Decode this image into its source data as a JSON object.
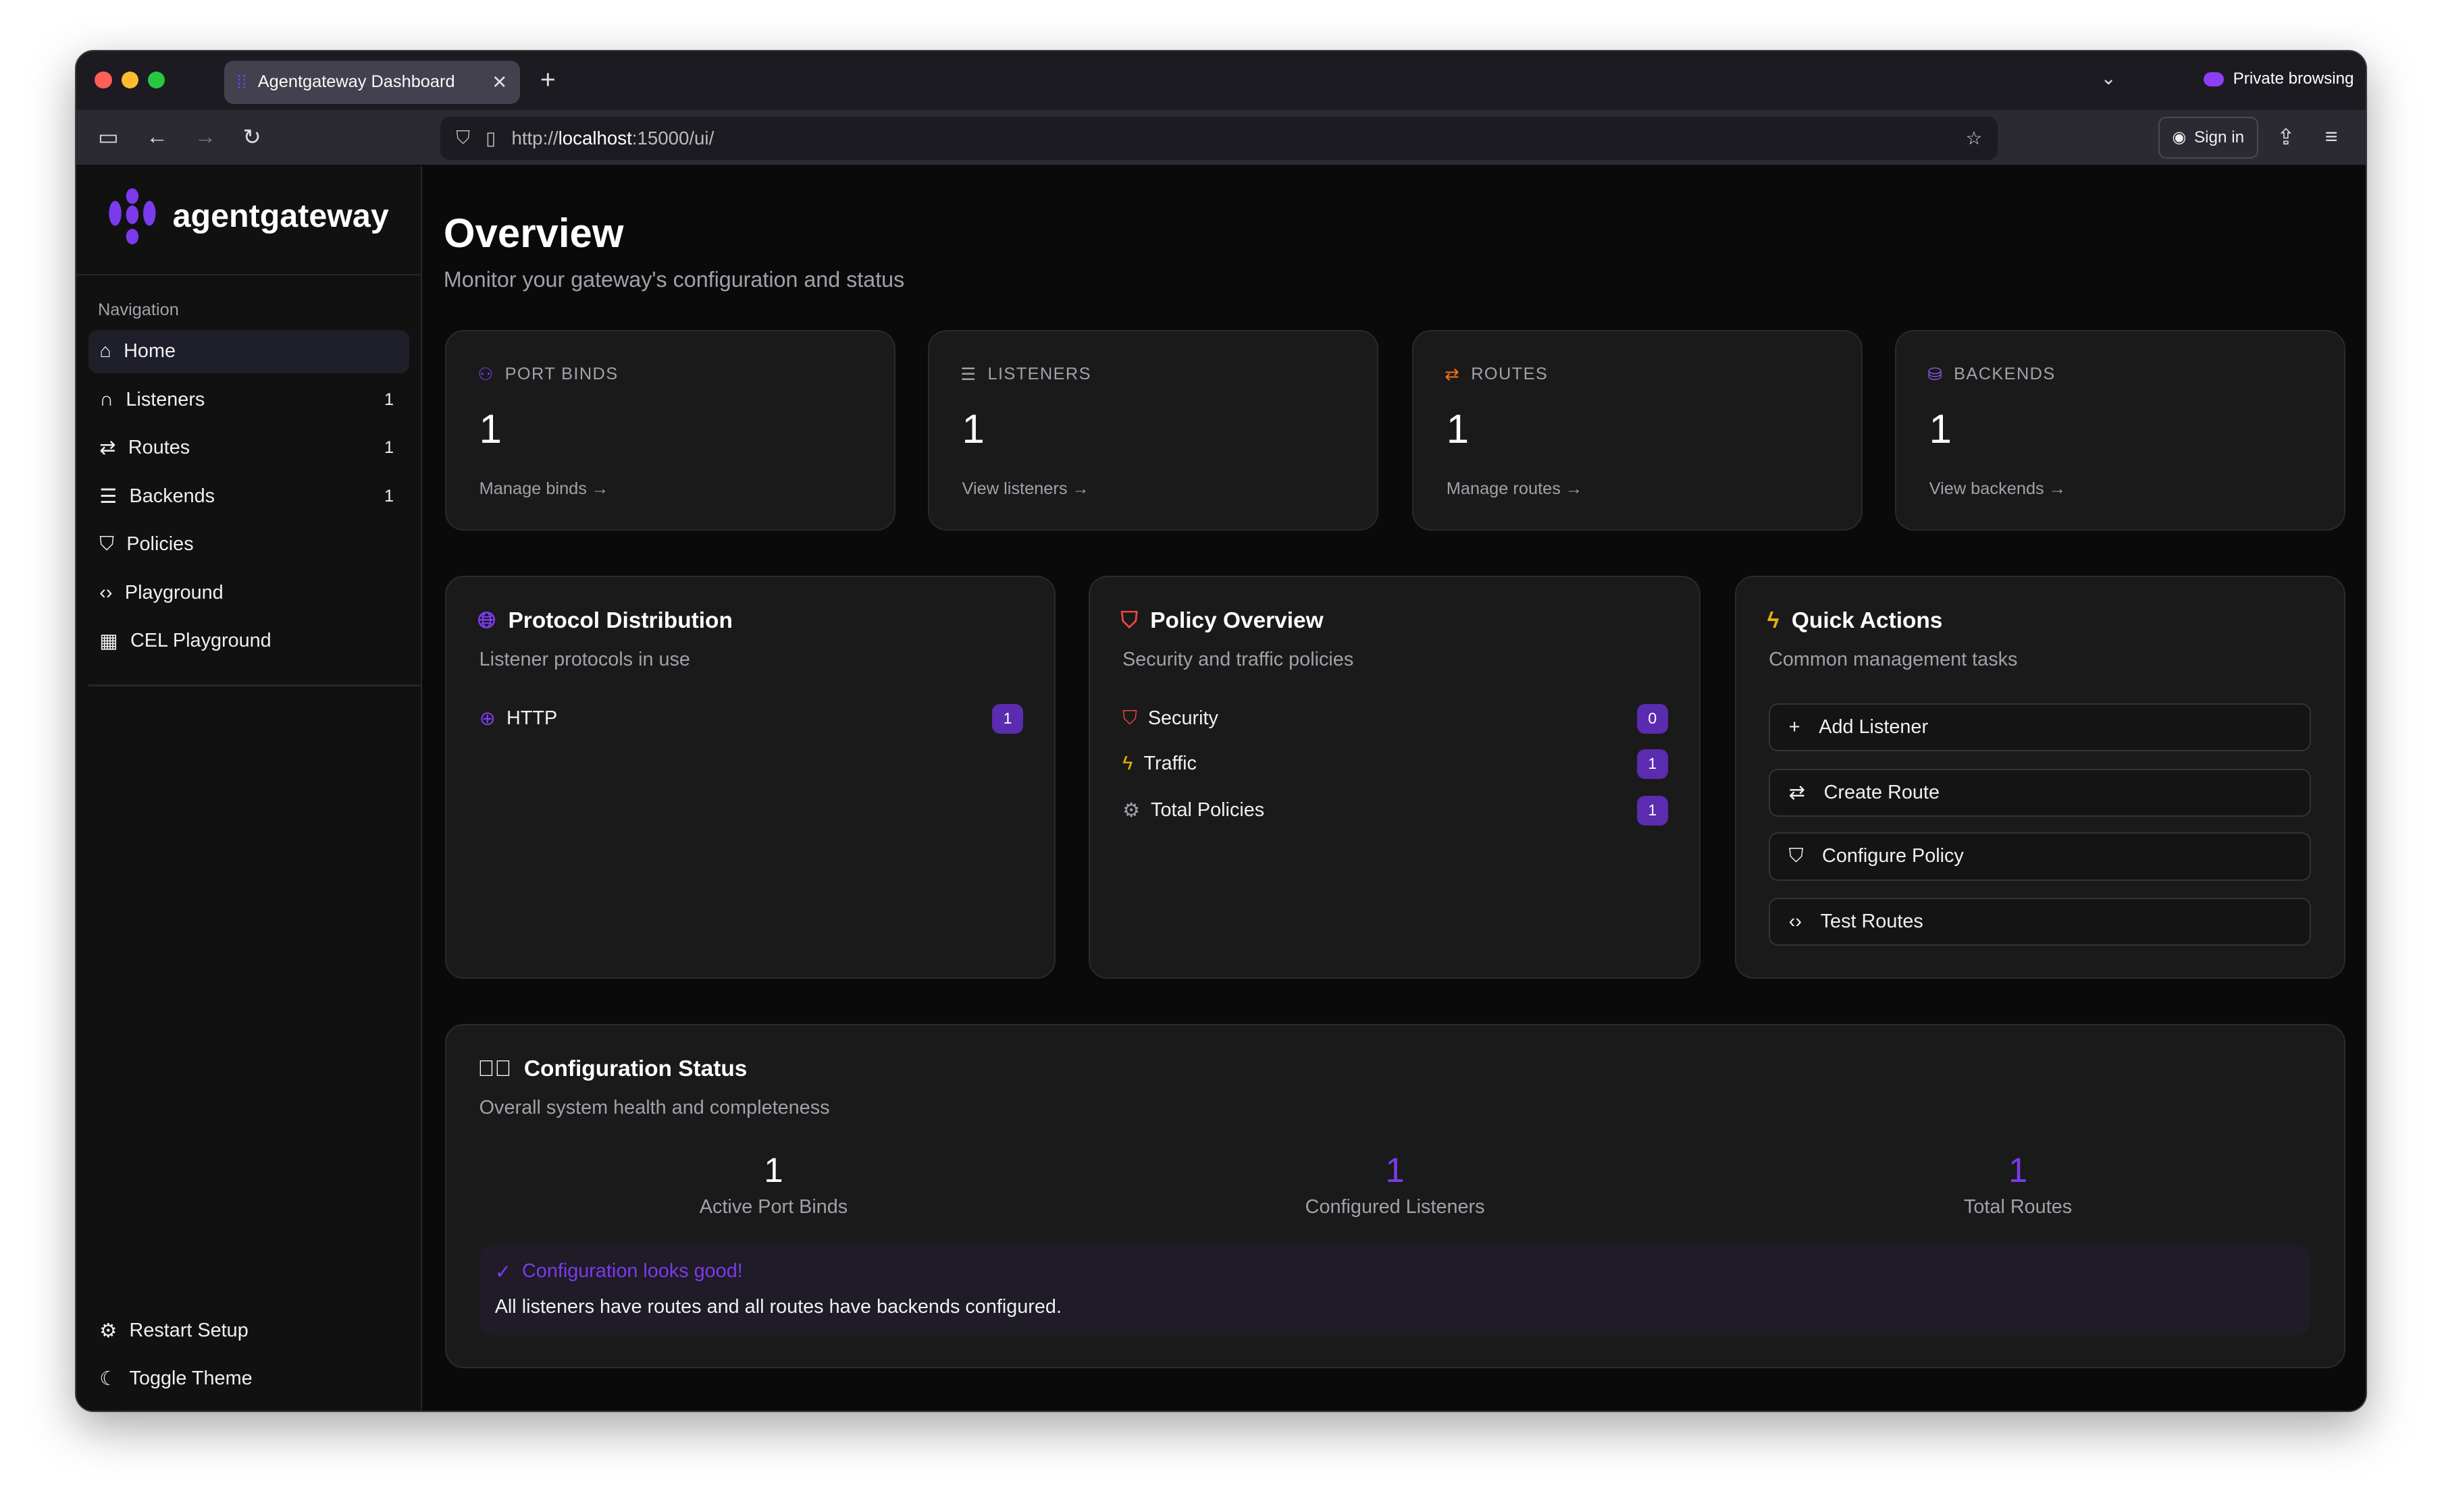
{
  "browser": {
    "tab_title": "Agentgateway Dashboard",
    "url_prefix": "http://",
    "url_host": "localhost",
    "url_rest": ":15000/ui/",
    "private_label": "Private browsing",
    "sign_in": "Sign in"
  },
  "sidebar": {
    "brand": "agentgateway",
    "nav_heading": "Navigation",
    "items": [
      {
        "label": "Home",
        "icon": "home-icon",
        "active": true
      },
      {
        "label": "Listeners",
        "icon": "headphones-icon",
        "count": "1"
      },
      {
        "label": "Routes",
        "icon": "route-icon",
        "count": "1"
      },
      {
        "label": "Backends",
        "icon": "server-icon",
        "count": "1"
      },
      {
        "label": "Policies",
        "icon": "shield-icon"
      },
      {
        "label": "Playground",
        "icon": "code-icon"
      },
      {
        "label": "CEL Playground",
        "icon": "calculator-icon"
      }
    ],
    "footer": [
      {
        "label": "Restart Setup",
        "icon": "gear-icon"
      },
      {
        "label": "Toggle Theme",
        "icon": "moon-icon"
      }
    ]
  },
  "page": {
    "title": "Overview",
    "subtitle": "Monitor your gateway's configuration and status"
  },
  "stats": [
    {
      "label": "PORT BINDS",
      "value": "1",
      "link": "Manage binds",
      "color": "#7c3aed"
    },
    {
      "label": "LISTENERS",
      "value": "1",
      "link": "View listeners",
      "color": "#a1a1aa"
    },
    {
      "label": "ROUTES",
      "value": "1",
      "link": "Manage routes",
      "color": "#f97316"
    },
    {
      "label": "BACKENDS",
      "value": "1",
      "link": "View backends",
      "color": "#8b5cf6"
    }
  ],
  "protocol": {
    "title": "Protocol Distribution",
    "subtitle": "Listener protocols in use",
    "items": [
      {
        "label": "HTTP",
        "count": "1"
      }
    ]
  },
  "policy": {
    "title": "Policy Overview",
    "subtitle": "Security and traffic policies",
    "items": [
      {
        "label": "Security",
        "count": "0"
      },
      {
        "label": "Traffic",
        "count": "1"
      },
      {
        "label": "Total Policies",
        "count": "1"
      }
    ]
  },
  "quick": {
    "title": "Quick Actions",
    "subtitle": "Common management tasks",
    "actions": [
      "Add Listener",
      "Create Route",
      "Configure Policy",
      "Test Routes"
    ]
  },
  "config": {
    "title": "Configuration Status",
    "subtitle": "Overall system health and completeness",
    "stats": [
      {
        "value": "1",
        "label": "Active Port Binds"
      },
      {
        "value": "1",
        "label": "Configured Listeners"
      },
      {
        "value": "1",
        "label": "Total Routes"
      }
    ],
    "alert_title": "Configuration looks good!",
    "alert_text": "All listeners have routes and all routes have backends configured."
  },
  "colors": {
    "accent": "#7c3aed",
    "badge": "#5b2bb0",
    "danger": "#ef4444",
    "warning": "#eab308"
  }
}
